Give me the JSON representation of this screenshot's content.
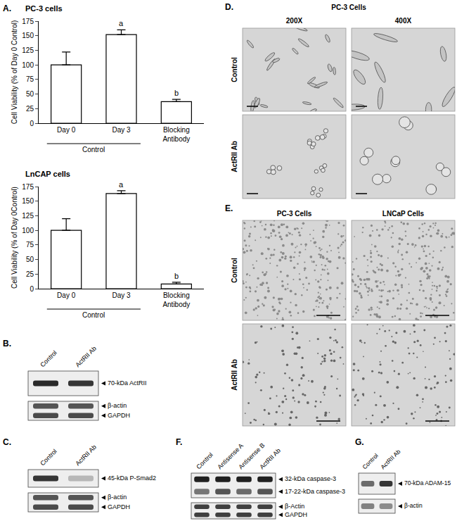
{
  "chart_data": [
    {
      "panel": "A.",
      "type": "bar",
      "title": "PC-3 cells",
      "y_label": "Cell Viability (% of Day 0 Control)",
      "categories": [
        "Day 0",
        "Day 3",
        "Blocking Antibody"
      ],
      "values": [
        100,
        152,
        37
      ],
      "errors": [
        22,
        8,
        4
      ],
      "color": "#ffffff",
      "ylim": [
        0,
        175
      ],
      "yticks": [
        0,
        25,
        50,
        75,
        100,
        125,
        150,
        175
      ],
      "annotations": [
        {
          "category": "Day 3",
          "text": "a"
        },
        {
          "category": "Blocking Antibody",
          "text": "b"
        }
      ],
      "group_label": {
        "text": "Control",
        "categories": [
          "Day 0",
          "Day 3"
        ]
      }
    },
    {
      "type": "bar",
      "title": "LnCAP cells",
      "y_label": "Cell Viability (% of Day 0Control)",
      "categories": [
        "Day 0",
        "Day 3",
        "Blocking Antibody"
      ],
      "values": [
        100,
        163,
        8
      ],
      "errors": [
        20,
        5,
        3
      ],
      "color": "#ffffff",
      "ylim": [
        0,
        175
      ],
      "yticks": [
        0,
        25,
        50,
        75,
        100,
        125,
        150,
        175
      ],
      "annotations": [
        {
          "category": "Day 3",
          "text": "a"
        },
        {
          "category": "Blocking Antibody",
          "text": "b"
        }
      ],
      "group_label": {
        "text": "Control",
        "categories": [
          "Day 0",
          "Day 3"
        ]
      }
    }
  ],
  "blots": [
    {
      "panel": "B.",
      "lanes": [
        "Control",
        "ActRII Ab"
      ],
      "boxes": [
        [
          {
            "label": "70-kDa ActRII",
            "intensity": [
              0.9,
              0.85
            ]
          }
        ],
        [
          {
            "label": "β-actin",
            "intensity": [
              0.7,
              0.7
            ]
          },
          {
            "label": "GAPDH",
            "intensity": [
              0.75,
              0.75
            ]
          }
        ]
      ]
    },
    {
      "panel": "C.",
      "lanes": [
        "Control",
        "ActRII Ab"
      ],
      "boxes": [
        [
          {
            "label": "45-kDa P-Smad2",
            "intensity": [
              0.85,
              0.25
            ]
          }
        ],
        [
          {
            "label": "β-actin",
            "intensity": [
              0.7,
              0.7
            ]
          },
          {
            "label": "GAPDH",
            "intensity": [
              0.75,
              0.75
            ]
          }
        ]
      ]
    },
    {
      "panel": "F.",
      "lanes": [
        "Control",
        "Antisense A",
        "Antisense B",
        "ActRII Ab"
      ],
      "boxes": [
        [
          {
            "label": "32-kDa caspase-3",
            "intensity": [
              0.95,
              0.95,
              0.95,
              0.95
            ]
          },
          {
            "label": "17-22-kDa caspase-3",
            "intensity": [
              0.55,
              0.7,
              0.6,
              0.7
            ]
          }
        ],
        [
          {
            "label": "β-Actin",
            "intensity": [
              0.8,
              0.8,
              0.8,
              0.8
            ]
          },
          {
            "label": "GAPDH",
            "intensity": [
              0.8,
              0.8,
              0.8,
              0.8
            ]
          }
        ]
      ]
    },
    {
      "panel": "G.",
      "lanes": [
        "Control",
        "ActRII Ab"
      ],
      "boxes": [
        [
          {
            "label": "70-kDa ADAM-15",
            "intensity": [
              0.6,
              0.85
            ]
          }
        ],
        [
          {
            "label": "β-actin",
            "intensity": [
              0.5,
              0.45
            ]
          }
        ]
      ]
    }
  ],
  "micrographs": [
    {
      "panel": "D.",
      "title": "PC-3 Cells",
      "columns": [
        "200X",
        "400X"
      ],
      "rows": [
        "Control",
        "ActRII Ab"
      ]
    },
    {
      "panel": "E.",
      "columns": [
        "PC-3 Cells",
        "LNCaP Cells"
      ],
      "rows": [
        "Control",
        "ActRII Ab"
      ]
    }
  ]
}
